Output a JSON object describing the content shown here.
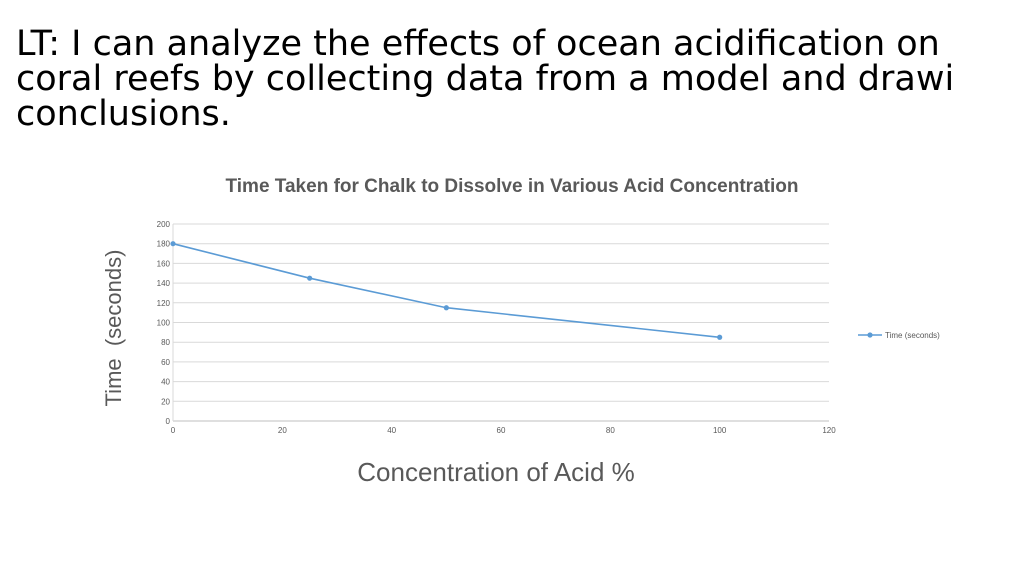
{
  "slide": {
    "title_lines": [
      "LT: I can analyze the effects of ocean acidification on",
      "coral reefs by collecting data from a model and drawi",
      "conclusions."
    ]
  },
  "chart_data": {
    "type": "line",
    "title": "Time Taken for Chalk to Dissolve in Various Acid Concentration",
    "xlabel": "Concentration of Acid %",
    "ylabel": "Time  (seconds)",
    "xlim": [
      0,
      120
    ],
    "ylim": [
      0,
      200
    ],
    "xticks": [
      "0",
      "20",
      "40",
      "60",
      "80",
      "100",
      "120"
    ],
    "yticks": [
      "0",
      "20",
      "40",
      "60",
      "80",
      "100",
      "120",
      "140",
      "160",
      "180",
      "200"
    ],
    "grid": true,
    "legend_position": "right",
    "series": [
      {
        "name": "Time (seconds)",
        "color": "#5b9bd5",
        "x": [
          0,
          25,
          50,
          100
        ],
        "y": [
          180,
          145,
          115,
          85
        ]
      }
    ]
  }
}
